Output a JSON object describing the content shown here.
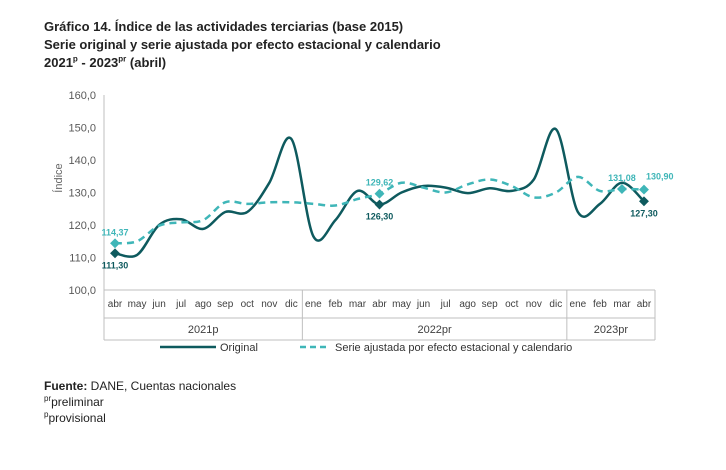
{
  "header": {
    "title_line1": "Gráfico 14. Índice de las actividades terciarias (base 2015)",
    "title_line2": "Serie original y serie ajustada por efecto estacional y calendario",
    "title_line3_a": "2021",
    "title_line3_sup_a": "p",
    "title_line3_b": " - 2023",
    "title_line3_sup_b": "pr",
    "title_line3_c": " (abril)"
  },
  "chart_data": {
    "type": "line",
    "ylabel": "Índice",
    "ylim": [
      100,
      160
    ],
    "yticks": [
      100,
      110,
      120,
      130,
      140,
      150,
      160
    ],
    "ytick_labels": [
      "100,0",
      "110,0",
      "120,0",
      "130,0",
      "140,0",
      "150,0",
      "160,0"
    ],
    "grid": false,
    "categories": [
      "abr",
      "may",
      "jun",
      "jul",
      "ago",
      "sep",
      "oct",
      "nov",
      "dic",
      "ene",
      "feb",
      "mar",
      "abr",
      "may",
      "jun",
      "jul",
      "ago",
      "sep",
      "oct",
      "nov",
      "dic",
      "ene",
      "feb",
      "mar",
      "abr"
    ],
    "year_groups": [
      {
        "label": "2021p",
        "start": 0,
        "end": 8
      },
      {
        "label": "2022pr",
        "start": 9,
        "end": 20
      },
      {
        "label": "2023pr",
        "start": 21,
        "end": 24
      }
    ],
    "series": [
      {
        "name": "Original",
        "color": "#0e5a5e",
        "style": "solid",
        "values": [
          111.3,
          110.8,
          120.0,
          121.8,
          118.8,
          124.0,
          124.0,
          133.0,
          146.5,
          116.5,
          121.5,
          130.5,
          126.3,
          130.0,
          132.0,
          131.5,
          129.8,
          131.3,
          130.5,
          134.0,
          149.5,
          124.0,
          126.5,
          133.0,
          127.3
        ]
      },
      {
        "name": "Serie ajustada por efecto estacional y calendario",
        "color": "#3fb6b8",
        "style": "dashed",
        "values": [
          114.37,
          115.0,
          119.8,
          120.8,
          121.5,
          127.0,
          126.5,
          127.0,
          127.0,
          126.5,
          126.0,
          128.0,
          129.62,
          133.0,
          131.5,
          130.0,
          132.5,
          134.0,
          132.0,
          128.5,
          130.0,
          134.8,
          130.5,
          131.08,
          130.9
        ]
      }
    ],
    "annotations": [
      {
        "series": 0,
        "index": 0,
        "label": "111,30",
        "pos": "below"
      },
      {
        "series": 1,
        "index": 0,
        "label": "114,37",
        "pos": "above"
      },
      {
        "series": 0,
        "index": 12,
        "label": "126,30",
        "pos": "below"
      },
      {
        "series": 1,
        "index": 12,
        "label": "129,62",
        "pos": "above"
      },
      {
        "series": 1,
        "index": 23,
        "label": "131,08",
        "pos": "above"
      },
      {
        "series": 1,
        "index": 24,
        "label": "130,90",
        "pos": "above-right"
      },
      {
        "series": 0,
        "index": 24,
        "label": "127,30",
        "pos": "below"
      }
    ]
  },
  "footer": {
    "source_label": "Fuente:",
    "source_text": " DANE, Cuentas nacionales",
    "note1_sup": "pr",
    "note1_text": "preliminar",
    "note2_sup": "p",
    "note2_text": "provisional"
  }
}
